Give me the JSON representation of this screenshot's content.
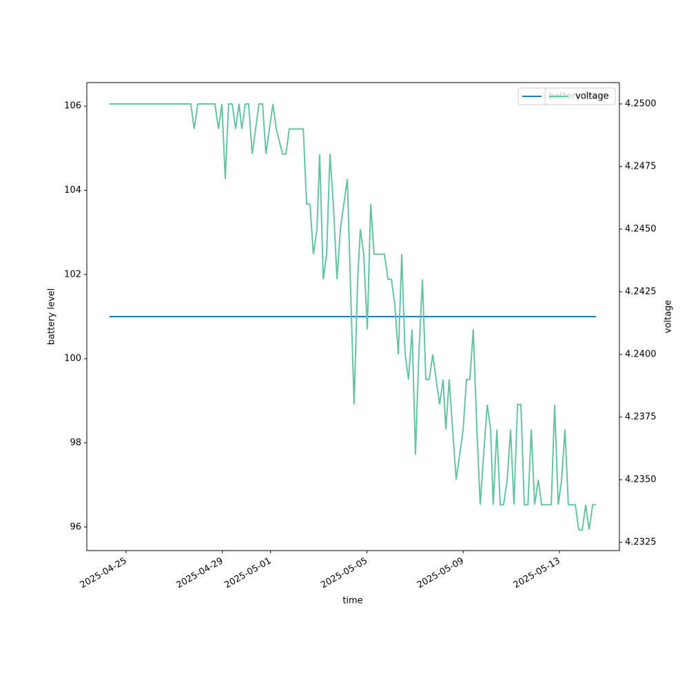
{
  "chart_data": {
    "type": "line",
    "xlabel": "time",
    "ylabel": "battery level",
    "y2label": "voltage",
    "legend": "upper right",
    "xlim": [
      20201.37,
      20223.49
    ],
    "xticks": [
      {
        "value": 20203,
        "label": "2025-04-25"
      },
      {
        "value": 20207,
        "label": "2025-04-29"
      },
      {
        "value": 20209,
        "label": "2025-05-01"
      },
      {
        "value": 20213,
        "label": "2025-05-05"
      },
      {
        "value": 20217,
        "label": "2025-05-09"
      },
      {
        "value": 20221,
        "label": "2025-05-13"
      }
    ],
    "ylim": [
      95.44,
      106.56
    ],
    "yticks": [
      96,
      98,
      100,
      102,
      104,
      106
    ],
    "y2lim": [
      4.23217,
      4.25085
    ],
    "y2ticks": [
      4.2325,
      {
        "value": 4.235,
        "label": "4.2350"
      },
      4.2375,
      {
        "value": 4.24,
        "label": "4.2400"
      },
      4.2425,
      {
        "value": 4.245,
        "label": "4.2450"
      },
      4.2475,
      {
        "value": 4.25,
        "label": "4.2500"
      }
    ],
    "series": [
      {
        "name": "battery level",
        "color": "#1f77b4",
        "axis": "y",
        "x": [
          20202.31,
          20222.52
        ],
        "values": [
          101,
          101
        ]
      },
      {
        "name": "voltage",
        "color": "#66c2a5",
        "axis": "y2",
        "x": [
          20202.31,
          20205.69,
          20205.83,
          20205.98,
          20206.69,
          20206.84,
          20206.98,
          20207.12,
          20207.26,
          20207.41,
          20207.55,
          20207.69,
          20207.81,
          20207.95,
          20208.09,
          20208.24,
          20208.52,
          20208.67,
          20208.81,
          20209.1,
          20209.24,
          20209.5,
          20209.64,
          20209.78,
          20210.36,
          20210.5,
          20210.64,
          20210.78,
          20210.93,
          20211.04,
          20211.19,
          20211.33,
          20211.47,
          20211.61,
          20211.76,
          20211.9,
          20212.19,
          20212.47,
          20212.62,
          20212.73,
          20212.87,
          20213.02,
          20213.16,
          20213.3,
          20213.73,
          20213.88,
          20214.02,
          20214.16,
          20214.31,
          20214.45,
          20214.59,
          20214.73,
          20214.88,
          20215.02,
          20215.16,
          20215.31,
          20215.45,
          20215.59,
          20215.74,
          20215.88,
          20216.02,
          20216.17,
          20216.28,
          20216.42,
          20216.71,
          20217.0,
          20217.14,
          20217.28,
          20217.42,
          20217.57,
          20217.71,
          20217.85,
          20218.0,
          20218.14,
          20218.25,
          20218.4,
          20218.54,
          20218.68,
          20218.83,
          20218.97,
          20219.11,
          20219.26,
          20219.4,
          20219.54,
          20219.69,
          20219.83,
          20219.97,
          20220.12,
          20220.26,
          20220.66,
          20220.8,
          20220.95,
          20221.09,
          20221.23,
          20221.37,
          20221.66,
          20221.8,
          20221.95,
          20222.09,
          20222.23,
          20222.38,
          20222.52
        ],
        "values": [
          4.25,
          4.25,
          4.249,
          4.25,
          4.25,
          4.249,
          4.25,
          4.247,
          4.25,
          4.25,
          4.249,
          4.25,
          4.249,
          4.25,
          4.25,
          4.248,
          4.25,
          4.25,
          4.248,
          4.25,
          4.249,
          4.248,
          4.248,
          4.249,
          4.249,
          4.246,
          4.246,
          4.244,
          4.245,
          4.248,
          4.243,
          4.244,
          4.248,
          4.246,
          4.243,
          4.245,
          4.247,
          4.238,
          4.243,
          4.245,
          4.244,
          4.241,
          4.246,
          4.244,
          4.244,
          4.243,
          4.243,
          4.242,
          4.24,
          4.244,
          4.24,
          4.239,
          4.241,
          4.236,
          4.24,
          4.243,
          4.239,
          4.239,
          4.24,
          4.239,
          4.238,
          4.239,
          4.237,
          4.239,
          4.235,
          4.237,
          4.239,
          4.239,
          4.241,
          4.237,
          4.234,
          4.236,
          4.238,
          4.237,
          4.234,
          4.237,
          4.234,
          4.234,
          4.235,
          4.237,
          4.234,
          4.238,
          4.238,
          4.234,
          4.234,
          4.237,
          4.234,
          4.235,
          4.234,
          4.234,
          4.238,
          4.234,
          4.235,
          4.237,
          4.234,
          4.234,
          4.233,
          4.233,
          4.234,
          4.233,
          4.234,
          4.234
        ]
      }
    ]
  }
}
